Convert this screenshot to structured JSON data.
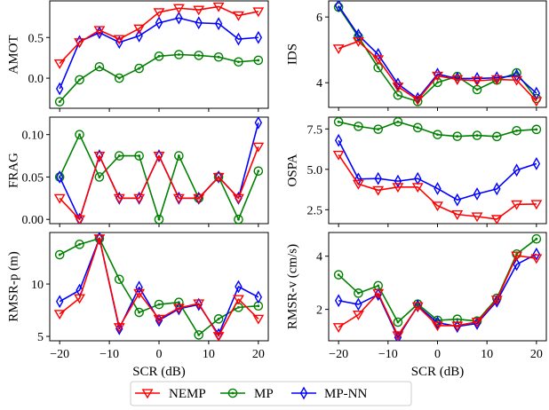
{
  "chart_data": {
    "type": "line",
    "x": [
      -20,
      -16,
      -12,
      -8,
      -4,
      0,
      4,
      8,
      12,
      16,
      20
    ],
    "xlabel": "SCR (dB)",
    "xticks": [
      -20,
      -10,
      0,
      10,
      20
    ],
    "xtick_labels": [
      "−20",
      "−10",
      "0",
      "10",
      "20"
    ],
    "xlim": [
      -22,
      22
    ],
    "legend": {
      "placement": "bottom-center",
      "entries": [
        {
          "name": "NEMP",
          "color": "#ff0000",
          "marker": "triangle-down"
        },
        {
          "name": "MP",
          "color": "#008000",
          "marker": "circle-dot"
        },
        {
          "name": "MP-NN",
          "color": "#0000ff",
          "marker": "thin-diamond"
        }
      ]
    },
    "panels": [
      {
        "id": "amot",
        "ylabel": "AMOT",
        "position": "top-left",
        "ylim": [
          -0.37,
          0.95
        ],
        "yticks": [
          0.0,
          0.5
        ],
        "ytick_labels": [
          "0.0",
          "0.5"
        ],
        "show_xticklabels": false,
        "series": [
          {
            "name": "NEMP",
            "values": [
              0.18,
              0.44,
              0.59,
              0.48,
              0.61,
              0.81,
              0.86,
              0.84,
              0.88,
              0.77,
              0.82
            ]
          },
          {
            "name": "MP",
            "values": [
              -0.29,
              -0.02,
              0.14,
              0.0,
              0.12,
              0.27,
              0.29,
              0.28,
              0.26,
              0.2,
              0.22
            ]
          },
          {
            "name": "MP-NN",
            "values": [
              -0.13,
              0.45,
              0.56,
              0.44,
              0.52,
              0.68,
              0.74,
              0.68,
              0.67,
              0.48,
              0.5
            ]
          }
        ]
      },
      {
        "id": "ids",
        "ylabel": "IDS",
        "position": "top-right",
        "ylim": [
          3.25,
          6.49
        ],
        "yticks": [
          4,
          6
        ],
        "ytick_labels": [
          "4",
          "6"
        ],
        "show_xticklabels": false,
        "series": [
          {
            "name": "NEMP",
            "values": [
              5.04,
              5.26,
              4.71,
              3.88,
              3.48,
              4.21,
              4.1,
              4.06,
              4.1,
              4.08,
              3.44
            ]
          },
          {
            "name": "MP",
            "values": [
              6.3,
              5.4,
              4.46,
              3.62,
              3.43,
              4.01,
              4.19,
              3.79,
              4.08,
              4.3,
              3.52
            ]
          },
          {
            "name": "MP-NN",
            "values": [
              6.34,
              5.45,
              4.86,
              3.96,
              3.52,
              4.26,
              4.13,
              4.13,
              4.15,
              4.22,
              3.68
            ]
          }
        ]
      },
      {
        "id": "frag",
        "ylabel": "FRAG",
        "position": "middle-left",
        "ylim": [
          -0.005,
          0.1206
        ],
        "yticks": [
          0.0,
          0.05,
          0.1
        ],
        "ytick_labels": [
          "0.00",
          "0.05",
          "0.10"
        ],
        "show_xticklabels": false,
        "series": [
          {
            "name": "NEMP",
            "values": [
              0.025,
              0.0,
              0.075,
              0.025,
              0.025,
              0.075,
              0.025,
              0.025,
              0.05,
              0.025,
              0.0857
            ]
          },
          {
            "name": "MP",
            "values": [
              0.05,
              0.1,
              0.05,
              0.075,
              0.075,
              0.0,
              0.075,
              0.025,
              0.05,
              0.0,
              0.057
            ]
          },
          {
            "name": "MP-NN",
            "values": [
              0.05,
              0.0,
              0.075,
              0.025,
              0.025,
              0.075,
              0.025,
              0.025,
              0.05,
              0.025,
              0.114
            ]
          }
        ]
      },
      {
        "id": "ospa",
        "ylabel": "OSPA",
        "position": "middle-right",
        "ylim": [
          1.64,
          8.23
        ],
        "yticks": [
          2.5,
          5.0,
          7.5
        ],
        "ytick_labels": [
          "2.5",
          "5.0",
          "7.5"
        ],
        "show_xticklabels": false,
        "series": [
          {
            "name": "NEMP",
            "values": [
              5.9,
              4.09,
              3.71,
              3.9,
              3.9,
              2.75,
              2.21,
              2.08,
              1.92,
              2.83,
              2.85
            ]
          },
          {
            "name": "MP",
            "values": [
              7.94,
              7.66,
              7.48,
              7.94,
              7.58,
              7.15,
              7.04,
              7.1,
              7.03,
              7.39,
              7.47
            ]
          },
          {
            "name": "MP-NN",
            "values": [
              6.79,
              4.4,
              4.43,
              4.27,
              4.43,
              3.81,
              3.11,
              3.48,
              3.79,
              4.95,
              5.35
            ]
          }
        ]
      },
      {
        "id": "rmsr-p",
        "ylabel": "RMSR-p (m)",
        "position": "bottom-left",
        "ylim": [
          4.58,
          14.92
        ],
        "yticks": [
          5,
          10
        ],
        "ytick_labels": [
          "5",
          "10"
        ],
        "show_xticklabels": true,
        "series": [
          {
            "name": "NEMP",
            "values": [
              7.14,
              8.64,
              14.35,
              5.87,
              9.13,
              6.67,
              7.71,
              8.14,
              5.03,
              8.56,
              6.67
            ]
          },
          {
            "name": "MP",
            "values": [
              12.8,
              13.79,
              14.35,
              10.45,
              7.29,
              8.05,
              8.25,
              5.14,
              6.67,
              7.77,
              7.91
            ]
          },
          {
            "name": "MP-NN",
            "values": [
              8.33,
              9.41,
              14.35,
              5.74,
              9.69,
              6.53,
              7.63,
              8.05,
              5.17,
              9.75,
              8.75
            ]
          }
        ]
      },
      {
        "id": "rmsr-v",
        "ylabel": "RMSR-v (cm/s)",
        "position": "bottom-right",
        "ylim": [
          0.82,
          4.89
        ],
        "yticks": [
          2,
          4
        ],
        "ytick_labels": [
          "2",
          "4"
        ],
        "show_xticklabels": true,
        "series": [
          {
            "name": "NEMP",
            "values": [
              1.33,
              1.8,
              2.61,
              1.02,
              2.11,
              1.39,
              1.39,
              1.53,
              2.36,
              4.02,
              3.92
            ]
          },
          {
            "name": "MP",
            "values": [
              3.3,
              2.61,
              2.89,
              1.52,
              2.2,
              1.59,
              1.63,
              1.56,
              2.42,
              4.08,
              4.65
            ]
          },
          {
            "name": "MP-NN",
            "values": [
              2.33,
              2.19,
              2.56,
              0.95,
              2.13,
              1.5,
              1.36,
              1.47,
              2.31,
              3.69,
              4.08
            ]
          }
        ]
      }
    ]
  }
}
